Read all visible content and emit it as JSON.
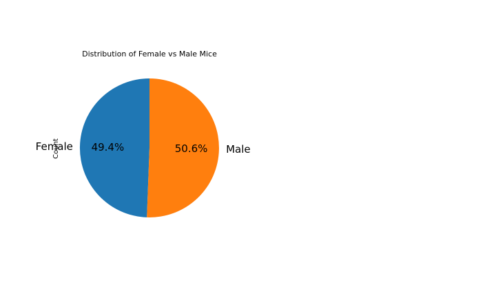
{
  "chart_data": {
    "type": "pie",
    "title": "Distribution of Female vs Male Mice",
    "ylabel": "Count",
    "categories": [
      "Female",
      "Male"
    ],
    "percent_labels": [
      "49.4%",
      "50.6%"
    ],
    "values": [
      49.4,
      50.6
    ],
    "colors": [
      "#1f77b4",
      "#ff7f0e"
    ]
  }
}
